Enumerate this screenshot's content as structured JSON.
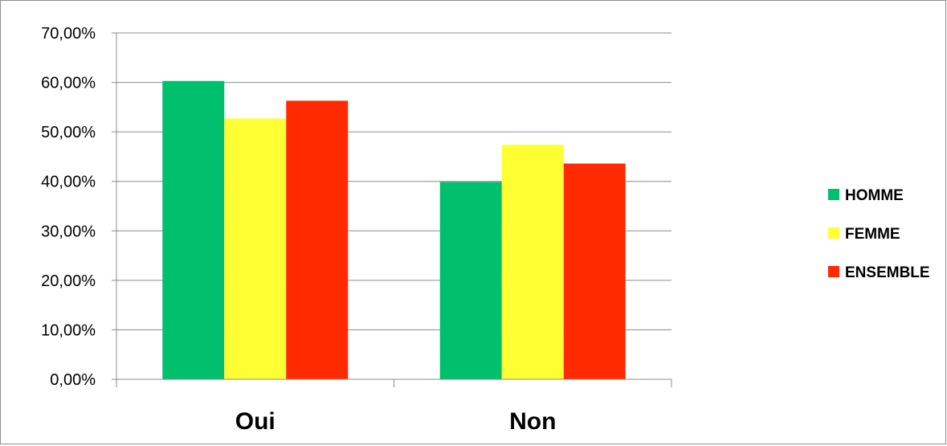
{
  "chart_data": {
    "type": "bar",
    "categories": [
      "Oui",
      "Non"
    ],
    "series": [
      {
        "name": "HOMME",
        "color": "#00c06e",
        "values": [
          60.3,
          39.9
        ]
      },
      {
        "name": "FEMME",
        "color": "#ffff33",
        "values": [
          52.7,
          47.4
        ]
      },
      {
        "name": "ENSEMBLE",
        "color": "#ff2a00",
        "values": [
          56.3,
          43.6
        ]
      }
    ],
    "ylim": [
      0,
      70
    ],
    "yticks": [
      "0,00%",
      "10,00%",
      "20,00%",
      "30,00%",
      "40,00%",
      "50,00%",
      "60,00%",
      "70,00%"
    ],
    "grid": true,
    "legend_position": "right"
  }
}
